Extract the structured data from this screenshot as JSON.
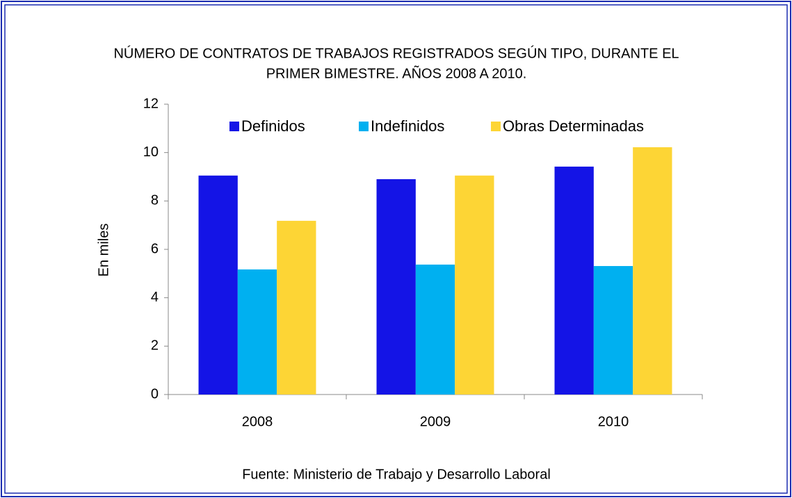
{
  "chart_data": {
    "type": "bar",
    "title": [
      "NÚMERO DE CONTRATOS DE TRABAJOS REGISTRADOS SEGÚN TIPO, DURANTE EL",
      "PRIMER BIMESTRE. AÑOS 2008 A 2010."
    ],
    "y_label": "En miles",
    "source": "Fuente: Ministerio de Trabajo y Desarrollo Laboral",
    "categories": [
      "2008",
      "2009",
      "2010"
    ],
    "series": [
      {
        "name": "Definidos",
        "color": "#1414e6",
        "values": [
          9.05,
          8.9,
          9.42
        ]
      },
      {
        "name": "Indefinidos",
        "color": "#00b0f0",
        "values": [
          5.17,
          5.37,
          5.31
        ]
      },
      {
        "name": "Obras Determinadas",
        "color": "#fdd535",
        "values": [
          7.18,
          9.05,
          10.22
        ]
      }
    ],
    "ylim": [
      0,
      12
    ],
    "yticks": [
      0,
      2,
      4,
      6,
      8,
      10,
      12
    ],
    "grid": false,
    "legend": "top"
  }
}
